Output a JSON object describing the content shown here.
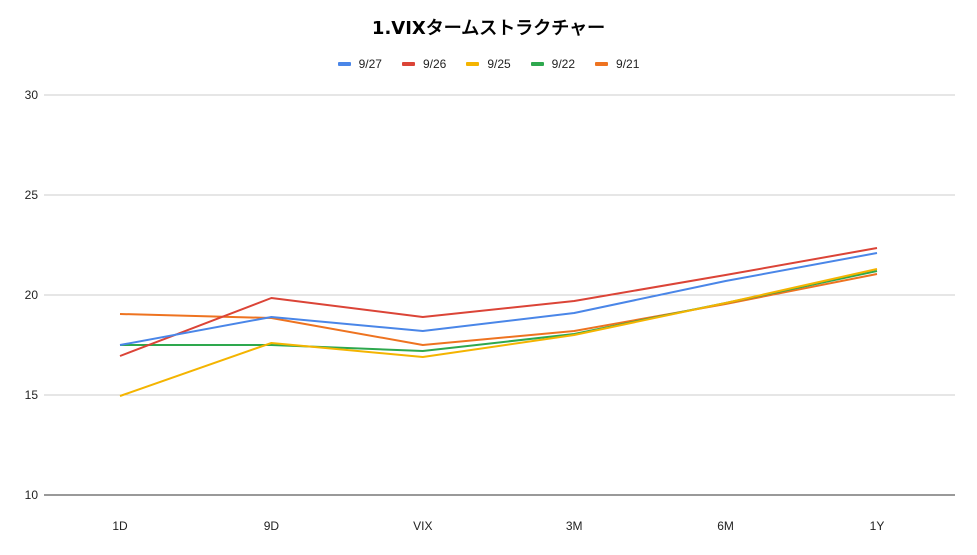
{
  "chart_data": {
    "type": "line",
    "title": "1.VIXタームストラクチャー",
    "categories": [
      "1D",
      "9D",
      "VIX",
      "3M",
      "6M",
      "1Y"
    ],
    "ylim": [
      10,
      30
    ],
    "yticks": [
      10,
      15,
      20,
      25,
      30
    ],
    "grid": true,
    "legend_position": "top",
    "series": [
      {
        "name": "9/27",
        "color": "#4A86E8",
        "values": [
          17.5,
          18.9,
          18.2,
          19.1,
          20.7,
          22.1
        ]
      },
      {
        "name": "9/26",
        "color": "#DB4437",
        "values": [
          16.95,
          19.85,
          18.9,
          19.7,
          21.0,
          22.35
        ]
      },
      {
        "name": "9/25",
        "color": "#F4B400",
        "values": [
          14.95,
          17.6,
          16.9,
          18.0,
          19.6,
          21.3
        ]
      },
      {
        "name": "9/22",
        "color": "#2EA84E",
        "values": [
          17.5,
          17.5,
          17.2,
          18.05,
          19.6,
          21.2
        ]
      },
      {
        "name": "9/21",
        "color": "#EE7320",
        "values": [
          19.05,
          18.85,
          17.5,
          18.2,
          19.55,
          21.05
        ]
      }
    ]
  }
}
